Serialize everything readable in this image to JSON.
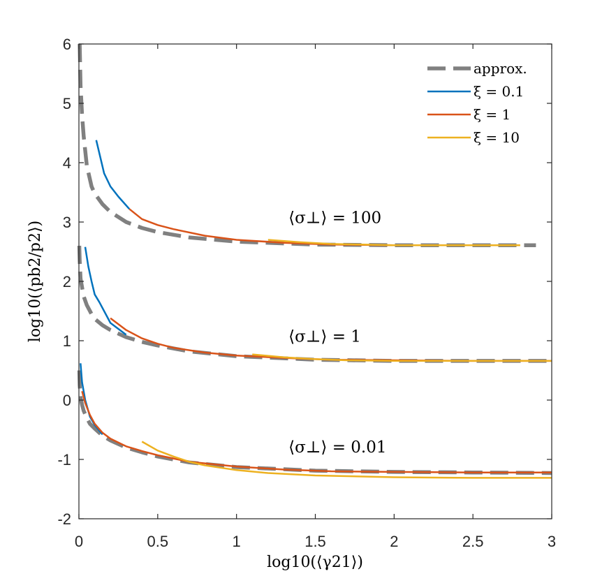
{
  "chart_data": {
    "type": "line",
    "title": "",
    "xlabel": "log10(⟨γ21⟩)",
    "ylabel": "log10(⟨pb2/p2⟩)",
    "xlim": [
      0,
      3
    ],
    "ylim": [
      -2,
      6
    ],
    "grid": false,
    "legend_position": "top-right",
    "x_ticks": [
      0,
      0.5,
      1,
      1.5,
      2,
      2.5,
      3
    ],
    "x_tick_labels": [
      "0",
      "0.5",
      "1",
      "1.5",
      "2",
      "2.5",
      "3"
    ],
    "y_ticks": [
      -2,
      -1,
      0,
      1,
      2,
      3,
      4,
      5,
      6
    ],
    "y_tick_labels": [
      "-2",
      "-1",
      "0",
      "1",
      "2",
      "3",
      "4",
      "5",
      "6"
    ],
    "annotations": [
      {
        "text": "⟨σ⊥⟩ = 100",
        "x": 1.33,
        "y": 2.98
      },
      {
        "text": "⟨σ⊥⟩ = 1",
        "x": 1.33,
        "y": 0.98
      },
      {
        "text": "⟨σ⊥⟩ = 0.01",
        "x": 1.33,
        "y": -0.88
      }
    ],
    "series": [
      {
        "name": "approx.",
        "group": "100",
        "color": "#808080",
        "style": "dashed",
        "x": [
          0.005,
          0.01,
          0.02,
          0.03,
          0.05,
          0.08,
          0.1,
          0.15,
          0.2,
          0.3,
          0.4,
          0.5,
          0.7,
          1.0,
          1.5,
          2.0,
          2.5,
          2.9
        ],
        "y": [
          6.0,
          5.3,
          4.8,
          4.45,
          3.95,
          3.6,
          3.48,
          3.3,
          3.17,
          3.0,
          2.9,
          2.83,
          2.74,
          2.67,
          2.62,
          2.61,
          2.61,
          2.61
        ]
      },
      {
        "name": "approx.",
        "group": "1",
        "color": "#808080",
        "style": "dashed",
        "x": [
          0.002,
          0.005,
          0.01,
          0.02,
          0.03,
          0.05,
          0.08,
          0.1,
          0.15,
          0.2,
          0.3,
          0.4,
          0.5,
          0.7,
          1.0,
          1.5,
          2.0,
          2.5,
          3.0
        ],
        "y": [
          2.6,
          2.35,
          2.05,
          1.9,
          1.75,
          1.6,
          1.45,
          1.37,
          1.26,
          1.18,
          1.06,
          0.98,
          0.92,
          0.82,
          0.74,
          0.68,
          0.66,
          0.66,
          0.66
        ]
      },
      {
        "name": "approx.",
        "group": "0.01",
        "color": "#808080",
        "style": "dashed",
        "x": [
          0.002,
          0.005,
          0.01,
          0.02,
          0.03,
          0.05,
          0.07,
          0.1,
          0.15,
          0.2,
          0.3,
          0.4,
          0.5,
          0.7,
          1.0,
          1.5,
          2.0,
          2.5,
          3.0
        ],
        "y": [
          0.5,
          0.25,
          0.05,
          -0.08,
          -0.18,
          -0.3,
          -0.4,
          -0.48,
          -0.6,
          -0.68,
          -0.8,
          -0.88,
          -0.95,
          -1.05,
          -1.13,
          -1.19,
          -1.21,
          -1.22,
          -1.23
        ]
      },
      {
        "name": "ξ = 0.1",
        "group": "100",
        "color": "#0072bd",
        "style": "solid",
        "x": [
          0.11,
          0.16,
          0.2,
          0.25,
          0.32
        ],
        "y": [
          4.38,
          3.82,
          3.6,
          3.43,
          3.22
        ]
      },
      {
        "name": "ξ = 0.1",
        "group": "1",
        "color": "#0072bd",
        "style": "solid",
        "x": [
          0.04,
          0.06,
          0.08,
          0.1,
          0.13,
          0.18,
          0.2,
          0.3
        ],
        "y": [
          2.58,
          2.25,
          2.0,
          1.78,
          1.65,
          1.4,
          1.3,
          1.1
        ]
      },
      {
        "name": "ξ = 0.1",
        "group": "0.01",
        "color": "#0072bd",
        "style": "solid",
        "x": [
          0.01,
          0.02,
          0.04,
          0.07,
          0.1,
          0.15
        ],
        "y": [
          0.62,
          0.3,
          0.0,
          -0.28,
          -0.42,
          -0.58
        ]
      },
      {
        "name": "ξ = 1",
        "group": "100",
        "color": "#d95319",
        "style": "solid",
        "x": [
          0.32,
          0.4,
          0.5,
          0.6,
          0.8,
          1.0,
          1.3,
          1.6,
          2.0,
          2.5,
          2.75
        ],
        "y": [
          3.22,
          3.05,
          2.95,
          2.88,
          2.77,
          2.7,
          2.65,
          2.62,
          2.61,
          2.61,
          2.61
        ]
      },
      {
        "name": "ξ = 1",
        "group": "1",
        "color": "#d95319",
        "style": "solid",
        "x": [
          0.2,
          0.3,
          0.4,
          0.5,
          0.6,
          0.8,
          1.0,
          1.3,
          1.6,
          2.0,
          2.5,
          3.0
        ],
        "y": [
          1.38,
          1.18,
          1.04,
          0.95,
          0.88,
          0.8,
          0.75,
          0.71,
          0.68,
          0.67,
          0.66,
          0.66
        ]
      },
      {
        "name": "ξ = 1",
        "group": "0.01",
        "color": "#d95319",
        "style": "solid",
        "x": [
          0.02,
          0.04,
          0.07,
          0.1,
          0.15,
          0.2,
          0.3,
          0.4,
          0.5,
          0.7,
          1.0,
          1.3,
          1.6,
          2.0,
          2.5,
          3.0
        ],
        "y": [
          0.15,
          -0.05,
          -0.25,
          -0.4,
          -0.55,
          -0.65,
          -0.78,
          -0.86,
          -0.93,
          -1.04,
          -1.12,
          -1.17,
          -1.2,
          -1.21,
          -1.22,
          -1.22
        ]
      },
      {
        "name": "ξ = 10",
        "group": "100",
        "color": "#edb120",
        "style": "solid",
        "x": [
          1.2,
          1.4,
          1.6,
          1.8,
          2.0,
          2.5,
          2.8
        ],
        "y": [
          2.7,
          2.66,
          2.63,
          2.62,
          2.61,
          2.61,
          2.61
        ]
      },
      {
        "name": "ξ = 10",
        "group": "1",
        "color": "#edb120",
        "style": "solid",
        "x": [
          1.1,
          1.3,
          1.5,
          1.7,
          2.0,
          2.5,
          3.0
        ],
        "y": [
          0.77,
          0.72,
          0.69,
          0.67,
          0.66,
          0.66,
          0.66
        ]
      },
      {
        "name": "ξ = 10",
        "group": "0.01",
        "color": "#edb120",
        "style": "solid",
        "x": [
          0.4,
          0.5,
          0.6,
          0.7,
          0.8,
          1.0,
          1.2,
          1.5,
          2.0,
          2.5,
          3.0
        ],
        "y": [
          -0.7,
          -0.85,
          -0.95,
          -1.04,
          -1.1,
          -1.18,
          -1.23,
          -1.27,
          -1.3,
          -1.31,
          -1.31
        ]
      }
    ],
    "legend": [
      {
        "label": "approx.",
        "color": "#808080",
        "style": "dashed"
      },
      {
        "label": "ξ = 0.1",
        "color": "#0072bd",
        "style": "solid"
      },
      {
        "label": "ξ = 1",
        "color": "#d95319",
        "style": "solid"
      },
      {
        "label": "ξ = 10",
        "color": "#edb120",
        "style": "solid"
      }
    ]
  }
}
